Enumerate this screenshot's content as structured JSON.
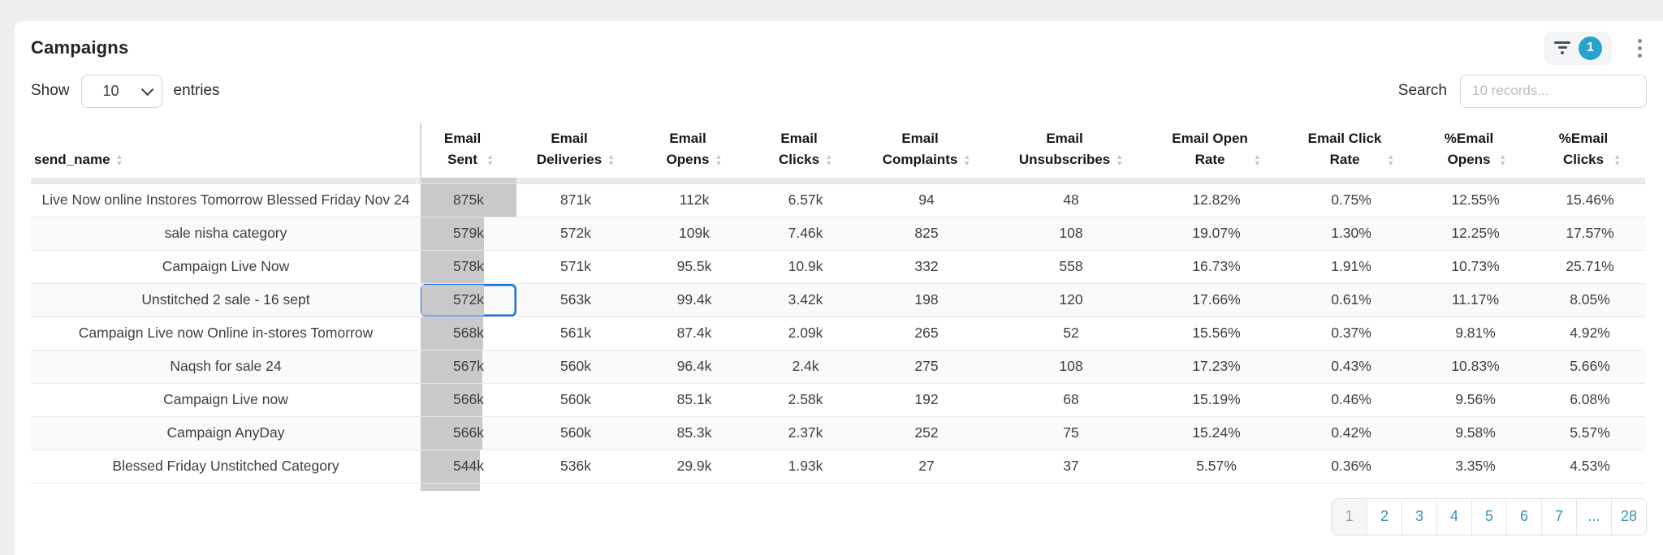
{
  "page": {
    "title": "Campaigns"
  },
  "toolbar": {
    "filter_badge": "1"
  },
  "controls": {
    "show_label": "Show",
    "page_size": "10",
    "entries_label": "entries",
    "search_label": "Search",
    "search_placeholder": "10 records..."
  },
  "table": {
    "columns": [
      {
        "key": "name",
        "lines": [
          "send_name"
        ],
        "align": "left",
        "sortable": true
      },
      {
        "key": "sent",
        "lines": [
          "Email",
          "Sent"
        ],
        "align": "center",
        "sortable": true,
        "has_bar": true
      },
      {
        "key": "deliveries",
        "lines": [
          "Email",
          "Deliveries"
        ],
        "align": "center",
        "sortable": true
      },
      {
        "key": "opens",
        "lines": [
          "Email",
          "Opens"
        ],
        "align": "center",
        "sortable": true
      },
      {
        "key": "clicks",
        "lines": [
          "Email",
          "Clicks"
        ],
        "align": "center",
        "sortable": true
      },
      {
        "key": "complaints",
        "lines": [
          "Email",
          "Complaints"
        ],
        "align": "center",
        "sortable": true
      },
      {
        "key": "unsubscribes",
        "lines": [
          "Email",
          "Unsubscribes"
        ],
        "align": "center",
        "sortable": true
      },
      {
        "key": "open_rate",
        "lines": [
          "Email Open",
          "Rate"
        ],
        "align": "center",
        "sortable": true
      },
      {
        "key": "click_rate",
        "lines": [
          "Email Click",
          "Rate"
        ],
        "align": "center",
        "sortable": true
      },
      {
        "key": "pct_opens",
        "lines": [
          "%Email",
          "Opens"
        ],
        "align": "center",
        "sortable": true
      },
      {
        "key": "pct_clicks",
        "lines": [
          "%Email",
          "Clicks"
        ],
        "align": "center",
        "sortable": true
      }
    ],
    "rows": [
      {
        "name": "Live Now online Instores Tomorrow Blessed Friday Nov 24",
        "sent": "875k",
        "deliveries": "871k",
        "opens": "112k",
        "clicks": "6.57k",
        "complaints": "94",
        "unsubscribes": "48",
        "open_rate": "12.82%",
        "click_rate": "0.75%",
        "pct_opens": "12.55%",
        "pct_clicks": "15.46%"
      },
      {
        "name": "sale nisha category",
        "sent": "579k",
        "deliveries": "572k",
        "opens": "109k",
        "clicks": "7.46k",
        "complaints": "825",
        "unsubscribes": "108",
        "open_rate": "19.07%",
        "click_rate": "1.30%",
        "pct_opens": "12.25%",
        "pct_clicks": "17.57%"
      },
      {
        "name": "Campaign Live Now",
        "sent": "578k",
        "deliveries": "571k",
        "opens": "95.5k",
        "clicks": "10.9k",
        "complaints": "332",
        "unsubscribes": "558",
        "open_rate": "16.73%",
        "click_rate": "1.91%",
        "pct_opens": "10.73%",
        "pct_clicks": "25.71%"
      },
      {
        "name": "Unstitched 2 sale - 16 sept",
        "sent": "572k",
        "deliveries": "563k",
        "opens": "99.4k",
        "clicks": "3.42k",
        "complaints": "198",
        "unsubscribes": "120",
        "open_rate": "17.66%",
        "click_rate": "0.61%",
        "pct_opens": "11.17%",
        "pct_clicks": "8.05%"
      },
      {
        "name": "Campaign Live now Online in-stores Tomorrow",
        "sent": "568k",
        "deliveries": "561k",
        "opens": "87.4k",
        "clicks": "2.09k",
        "complaints": "265",
        "unsubscribes": "52",
        "open_rate": "15.56%",
        "click_rate": "0.37%",
        "pct_opens": "9.81%",
        "pct_clicks": "4.92%"
      },
      {
        "name": "Naqsh for sale 24",
        "sent": "567k",
        "deliveries": "560k",
        "opens": "96.4k",
        "clicks": "2.4k",
        "complaints": "275",
        "unsubscribes": "108",
        "open_rate": "17.23%",
        "click_rate": "0.43%",
        "pct_opens": "10.83%",
        "pct_clicks": "5.66%"
      },
      {
        "name": "Campaign Live now",
        "sent": "566k",
        "deliveries": "560k",
        "opens": "85.1k",
        "clicks": "2.58k",
        "complaints": "192",
        "unsubscribes": "68",
        "open_rate": "15.19%",
        "click_rate": "0.46%",
        "pct_opens": "9.56%",
        "pct_clicks": "6.08%"
      },
      {
        "name": "Campaign AnyDay",
        "sent": "566k",
        "deliveries": "560k",
        "opens": "85.3k",
        "clicks": "2.37k",
        "complaints": "252",
        "unsubscribes": "75",
        "open_rate": "15.24%",
        "click_rate": "0.42%",
        "pct_opens": "9.58%",
        "pct_clicks": "5.57%"
      },
      {
        "name": "Blessed Friday Unstitched Category",
        "sent": "544k",
        "deliveries": "536k",
        "opens": "29.9k",
        "clicks": "1.93k",
        "complaints": "27",
        "unsubscribes": "37",
        "open_rate": "5.57%",
        "click_rate": "0.36%",
        "pct_opens": "3.35%",
        "pct_clicks": "4.53%"
      }
    ],
    "selected_cell": {
      "row_index": 3,
      "column": "sent"
    }
  },
  "pagination": {
    "pages": [
      "1",
      "2",
      "3",
      "4",
      "5",
      "6",
      "7",
      "...",
      "28"
    ],
    "current": "1"
  },
  "colors": {
    "accent_blue": "#28a2cf",
    "selection_blue": "#1b6fd8",
    "bar_gray": "#c9c9c9",
    "page_link": "#3b93bd"
  }
}
